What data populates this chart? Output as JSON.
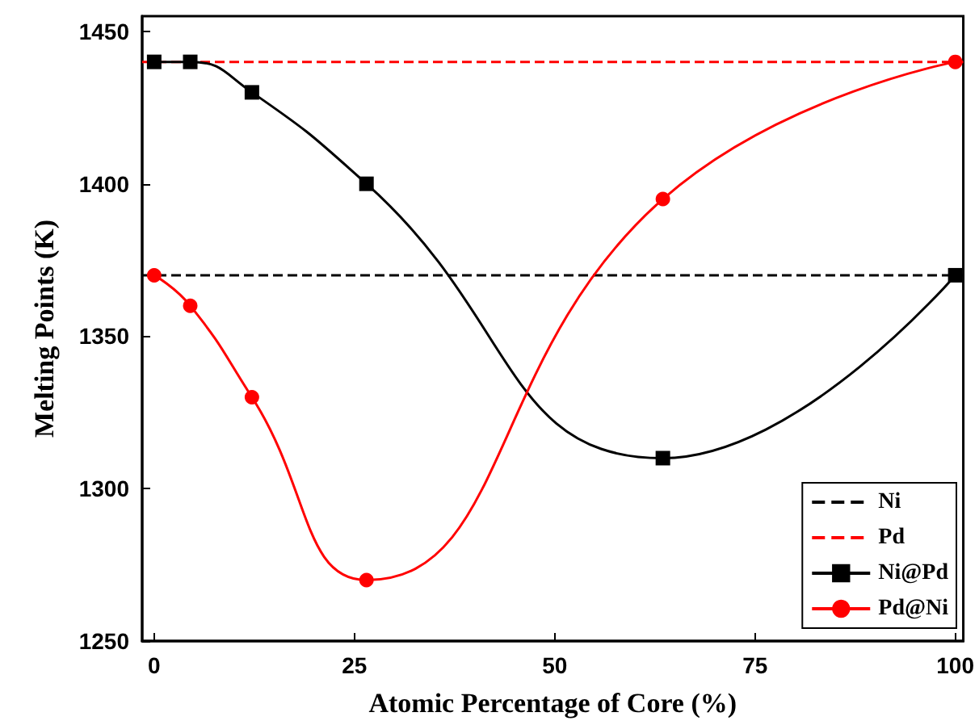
{
  "chart_data": {
    "type": "line",
    "xlabel": "Atomic Percentage of Core (%)",
    "ylabel": "Melting Points (K)",
    "xlim": [
      -1.5,
      101
    ],
    "xticks": [
      0,
      25,
      50,
      75,
      100
    ],
    "ylim": [
      1250,
      1455
    ],
    "yticks": [
      1250,
      1300,
      1350,
      1400,
      1450
    ],
    "grid": false,
    "legend": "bottom right",
    "series": [
      {
        "name": "Ni",
        "color": "#000000",
        "x": [
          -1.5,
          101
        ],
        "values": [
          1370,
          1370
        ],
        "line_style": "dashed",
        "marker": "none"
      },
      {
        "name": "Pd",
        "color": "#ff0000",
        "x": [
          -1.5,
          101
        ],
        "values": [
          1440,
          1440
        ],
        "line_style": "dashed",
        "marker": "none"
      },
      {
        "name": "Ni@Pd",
        "color": "#000000",
        "x": [
          0,
          4.5,
          12.2,
          26.5,
          63.5,
          100
        ],
        "values": [
          1440,
          1440,
          1430,
          1400,
          1310,
          1370
        ],
        "line_style": "solid",
        "marker": "square"
      },
      {
        "name": "Pd@Ni",
        "color": "#ff0000",
        "x": [
          0,
          4.5,
          12.2,
          26.5,
          63.5,
          100
        ],
        "values": [
          1370,
          1360,
          1330,
          1270,
          1395,
          1440
        ],
        "line_style": "solid",
        "marker": "circle"
      }
    ]
  }
}
